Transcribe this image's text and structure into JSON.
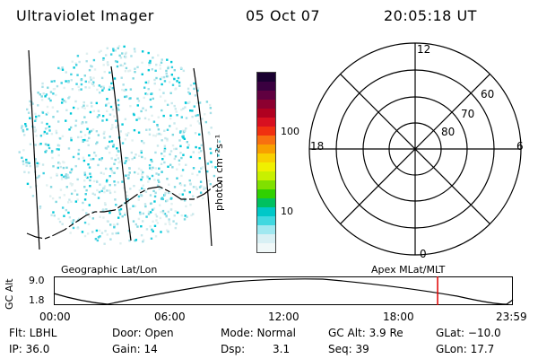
{
  "header": {
    "title": "Ultraviolet Imager",
    "date": "05 Oct 07",
    "time": "20:05:18 UT"
  },
  "colorbar": {
    "unit_label": "photon cm⁻²s⁻¹",
    "ticks": [
      "100",
      "10"
    ],
    "colors": [
      "#1a0030",
      "#3a0040",
      "#600040",
      "#8c0030",
      "#b00020",
      "#d81020",
      "#f03010",
      "#f87010",
      "#f8a000",
      "#f8d000",
      "#f0f000",
      "#c8f000",
      "#80e000",
      "#30d000",
      "#00c060",
      "#00c8c8",
      "#40d8e0",
      "#a0e8f0",
      "#d8f0f4",
      "#f0f8f8"
    ]
  },
  "polar_plot": {
    "hour_labels": [
      "12",
      "18",
      "6",
      "0"
    ],
    "lat_labels": [
      "60",
      "70",
      "80"
    ]
  },
  "timeline": {
    "axis_title": "GC Alt",
    "ymax": "9.0",
    "ymin": "1.8",
    "left_caption": "Geographic Lat/Lon",
    "right_caption": "Apex MLat/MLT",
    "ticks": [
      "00:00",
      "06:00",
      "12:00",
      "18:00",
      "23:59"
    ],
    "current_time_fraction": 0.836,
    "marker_color": "#e00000"
  },
  "status": {
    "flt": "Flt: LBHL",
    "door": "Door: Open",
    "mode": "Mode: Normal",
    "gc_alt": "GC Alt: 3.9 Re",
    "glat": "GLat: −10.0",
    "ip": "IP: 36.0",
    "gain": "Gain: 14",
    "dsp_label": "Dsp:",
    "dsp_value": "3.1",
    "seq": "Seq: 39",
    "glon": "GLon:  17.7"
  }
}
